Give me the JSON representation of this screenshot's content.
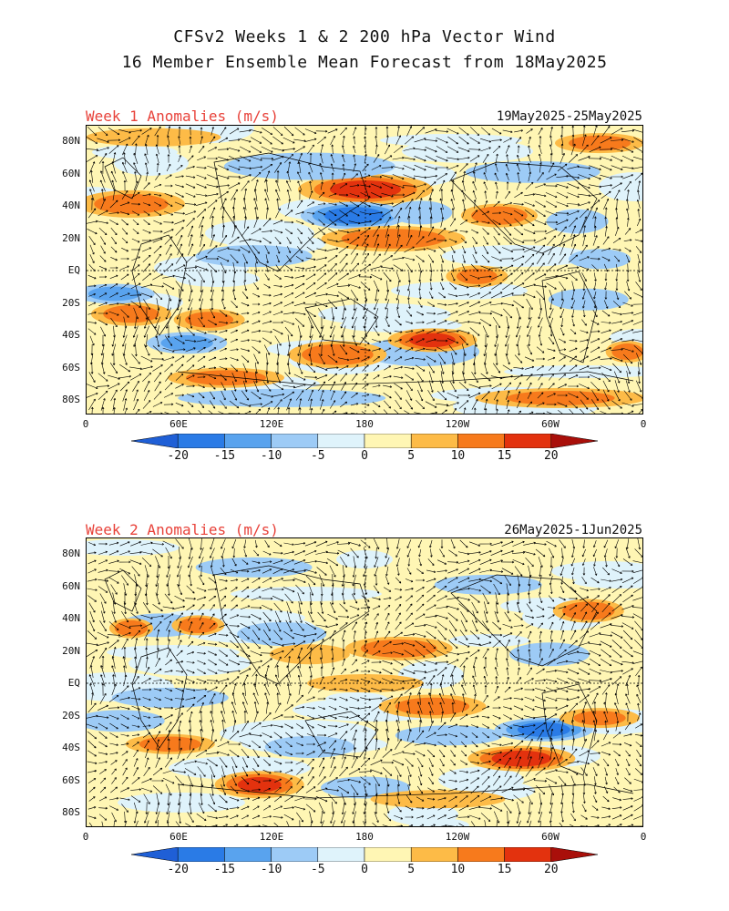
{
  "title_line1": "CFSv2 Weeks 1 & 2 200 hPa Vector Wind",
  "title_line2": "16 Member Ensemble Mean Forecast from 18May2025",
  "panels": [
    {
      "label": "Week 1 Anomalies (m/s)",
      "dates": "19May2025-25May2025"
    },
    {
      "label": "Week 2 Anomalies (m/s)",
      "dates": "26May2025-1Jun2025"
    }
  ],
  "lat_labels": [
    "80N",
    "60N",
    "40N",
    "20N",
    "EQ",
    "20S",
    "40S",
    "60S",
    "80S"
  ],
  "lon_labels": [
    "0",
    "60E",
    "120E",
    "180",
    "120W",
    "60W",
    "0"
  ],
  "colorbar": {
    "labels": [
      "-20",
      "-15",
      "-10",
      "-5",
      "0",
      "5",
      "10",
      "15",
      "20"
    ],
    "colors": [
      "#1f5fd6",
      "#2a7be6",
      "#59a3ee",
      "#9dcbf6",
      "#dff3fb",
      "#fff6b4",
      "#fdbb47",
      "#f77a1c",
      "#e3320e",
      "#a90f0a"
    ]
  }
}
